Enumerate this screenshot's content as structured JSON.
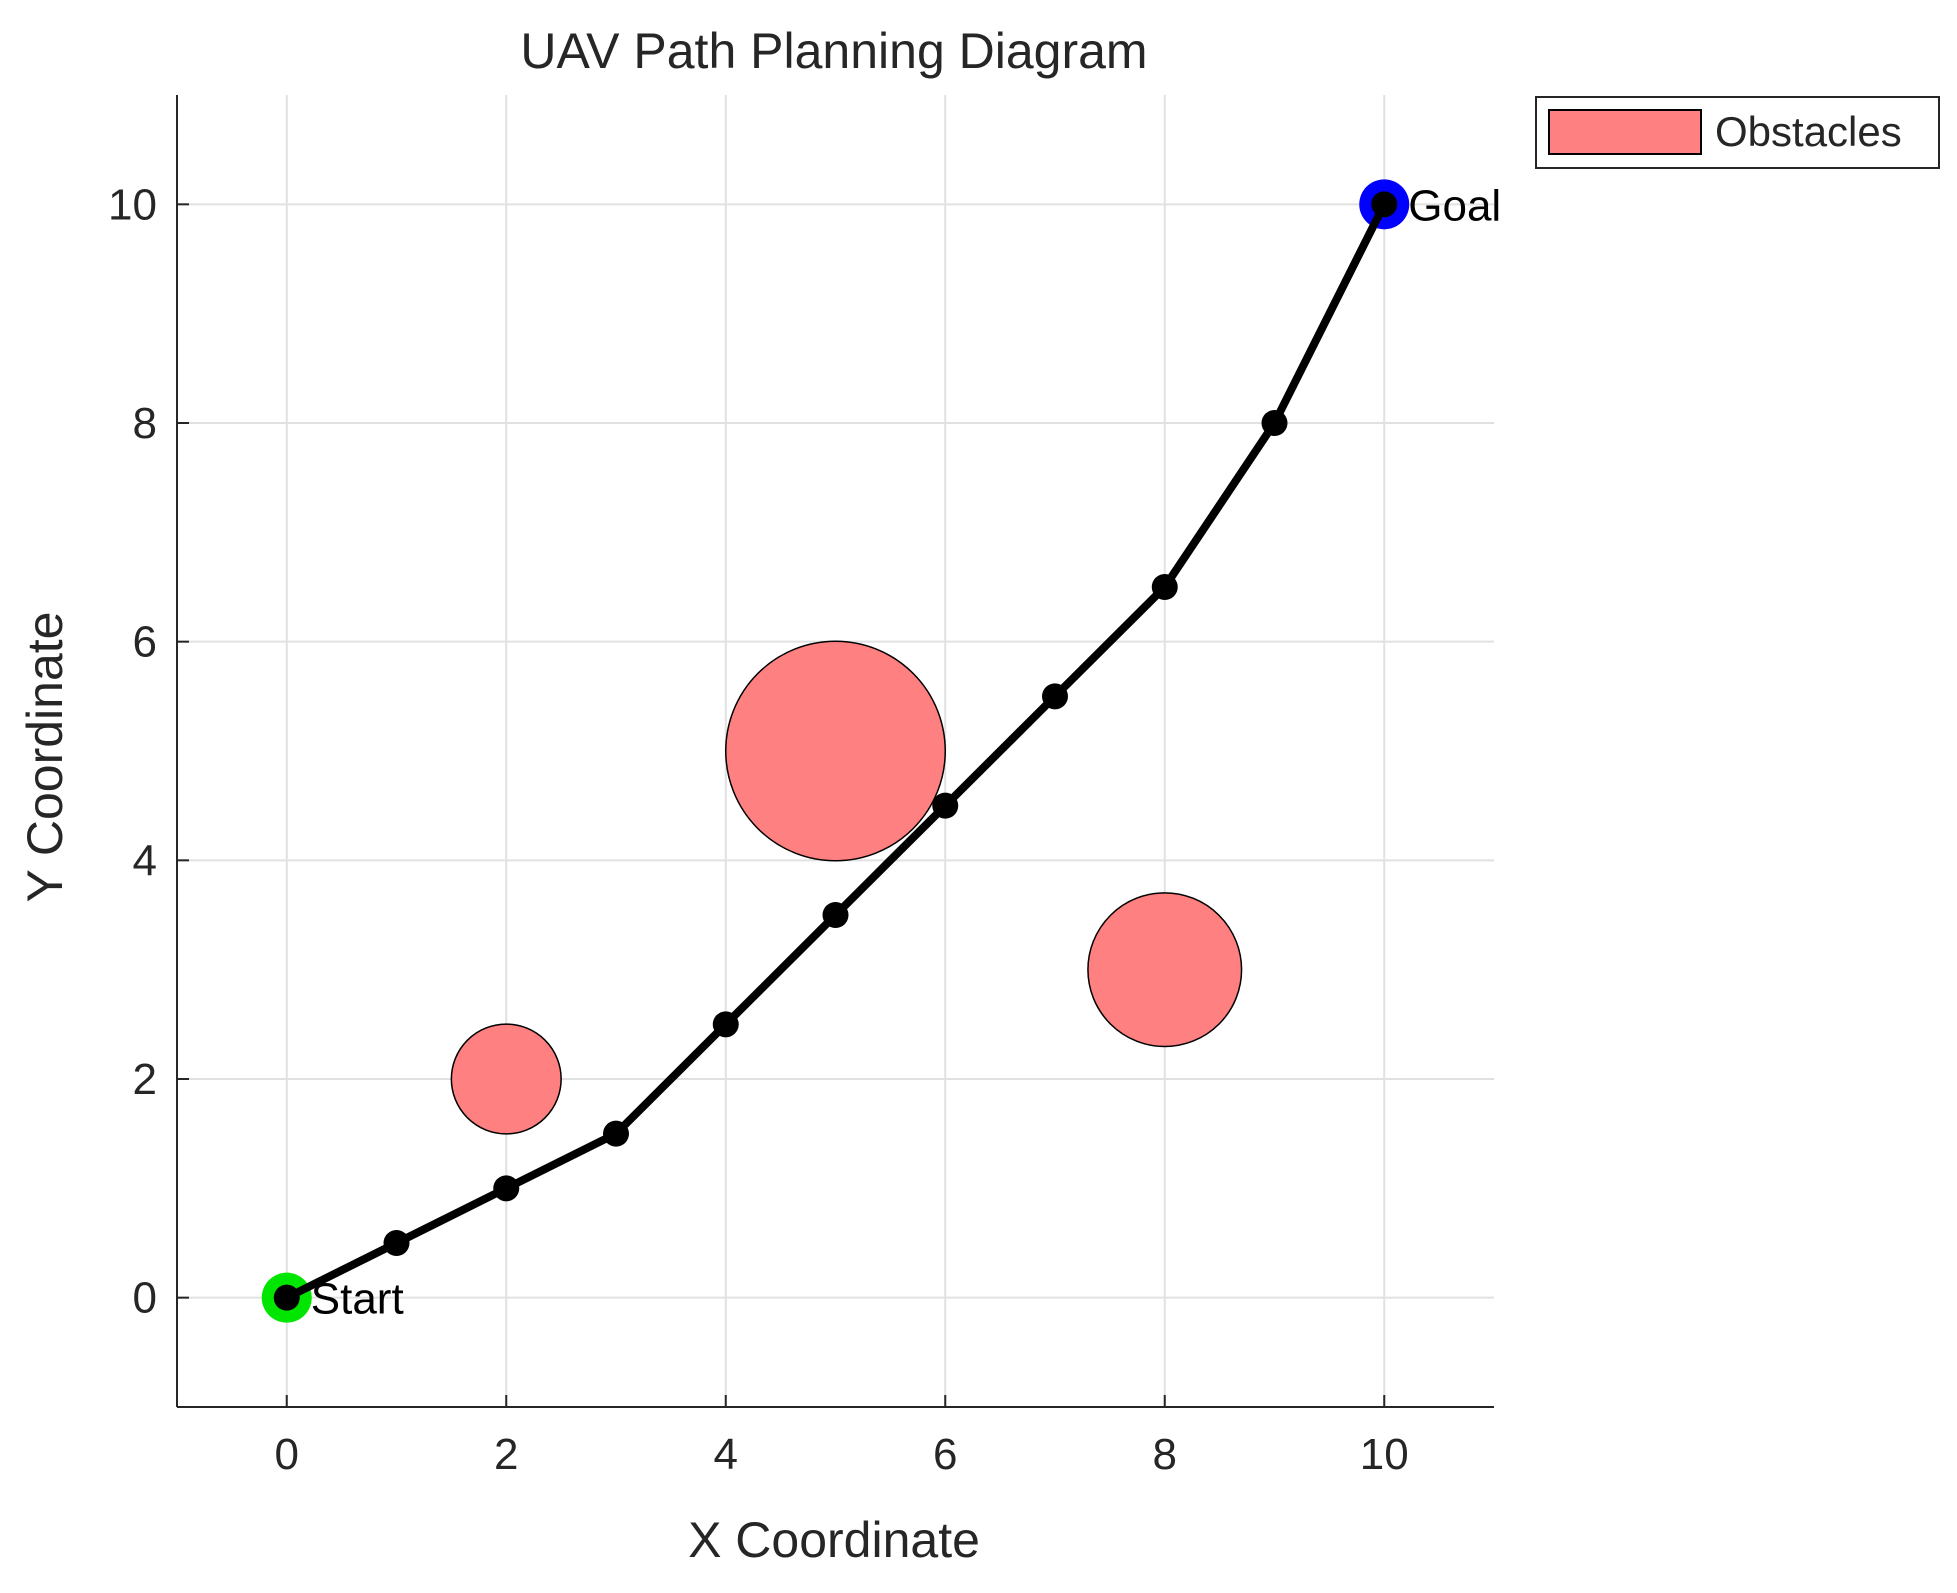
{
  "chart_data": {
    "type": "scatter",
    "title": "UAV Path Planning Diagram",
    "xlabel": "X Coordinate",
    "ylabel": "Y Coordinate",
    "xlim": [
      -1,
      11
    ],
    "ylim": [
      -1,
      11
    ],
    "x_ticks": [
      0,
      2,
      4,
      6,
      8,
      10
    ],
    "y_ticks": [
      0,
      2,
      4,
      6,
      8,
      10
    ],
    "x_tick_labels": [
      "0",
      "2",
      "4",
      "6",
      "8",
      "10"
    ],
    "y_tick_labels": [
      "0",
      "2",
      "4",
      "6",
      "8",
      "10"
    ],
    "grid": true,
    "legend_position": "outside-top-right",
    "legend": [
      {
        "label": "Obstacles",
        "color": "#ff8080"
      }
    ],
    "obstacles": [
      {
        "x": 2,
        "y": 2,
        "r": 0.5
      },
      {
        "x": 5,
        "y": 5,
        "r": 1.0
      },
      {
        "x": 8,
        "y": 3,
        "r": 0.7
      }
    ],
    "path": {
      "color": "#000000",
      "points": [
        {
          "x": 0,
          "y": 0
        },
        {
          "x": 1,
          "y": 0.5
        },
        {
          "x": 2,
          "y": 1
        },
        {
          "x": 3,
          "y": 1.5
        },
        {
          "x": 4,
          "y": 2.5
        },
        {
          "x": 5,
          "y": 3.5
        },
        {
          "x": 6,
          "y": 4.5
        },
        {
          "x": 7,
          "y": 5.5
        },
        {
          "x": 8,
          "y": 6.5
        },
        {
          "x": 9,
          "y": 8
        },
        {
          "x": 10,
          "y": 10
        }
      ]
    },
    "start": {
      "x": 0,
      "y": 0,
      "label": "Start",
      "color": "#00e600"
    },
    "goal": {
      "x": 10,
      "y": 10,
      "label": "Goal",
      "color": "#0000ff"
    },
    "obstacle_fill": "#ff8080",
    "obstacle_stroke": "#000000"
  }
}
